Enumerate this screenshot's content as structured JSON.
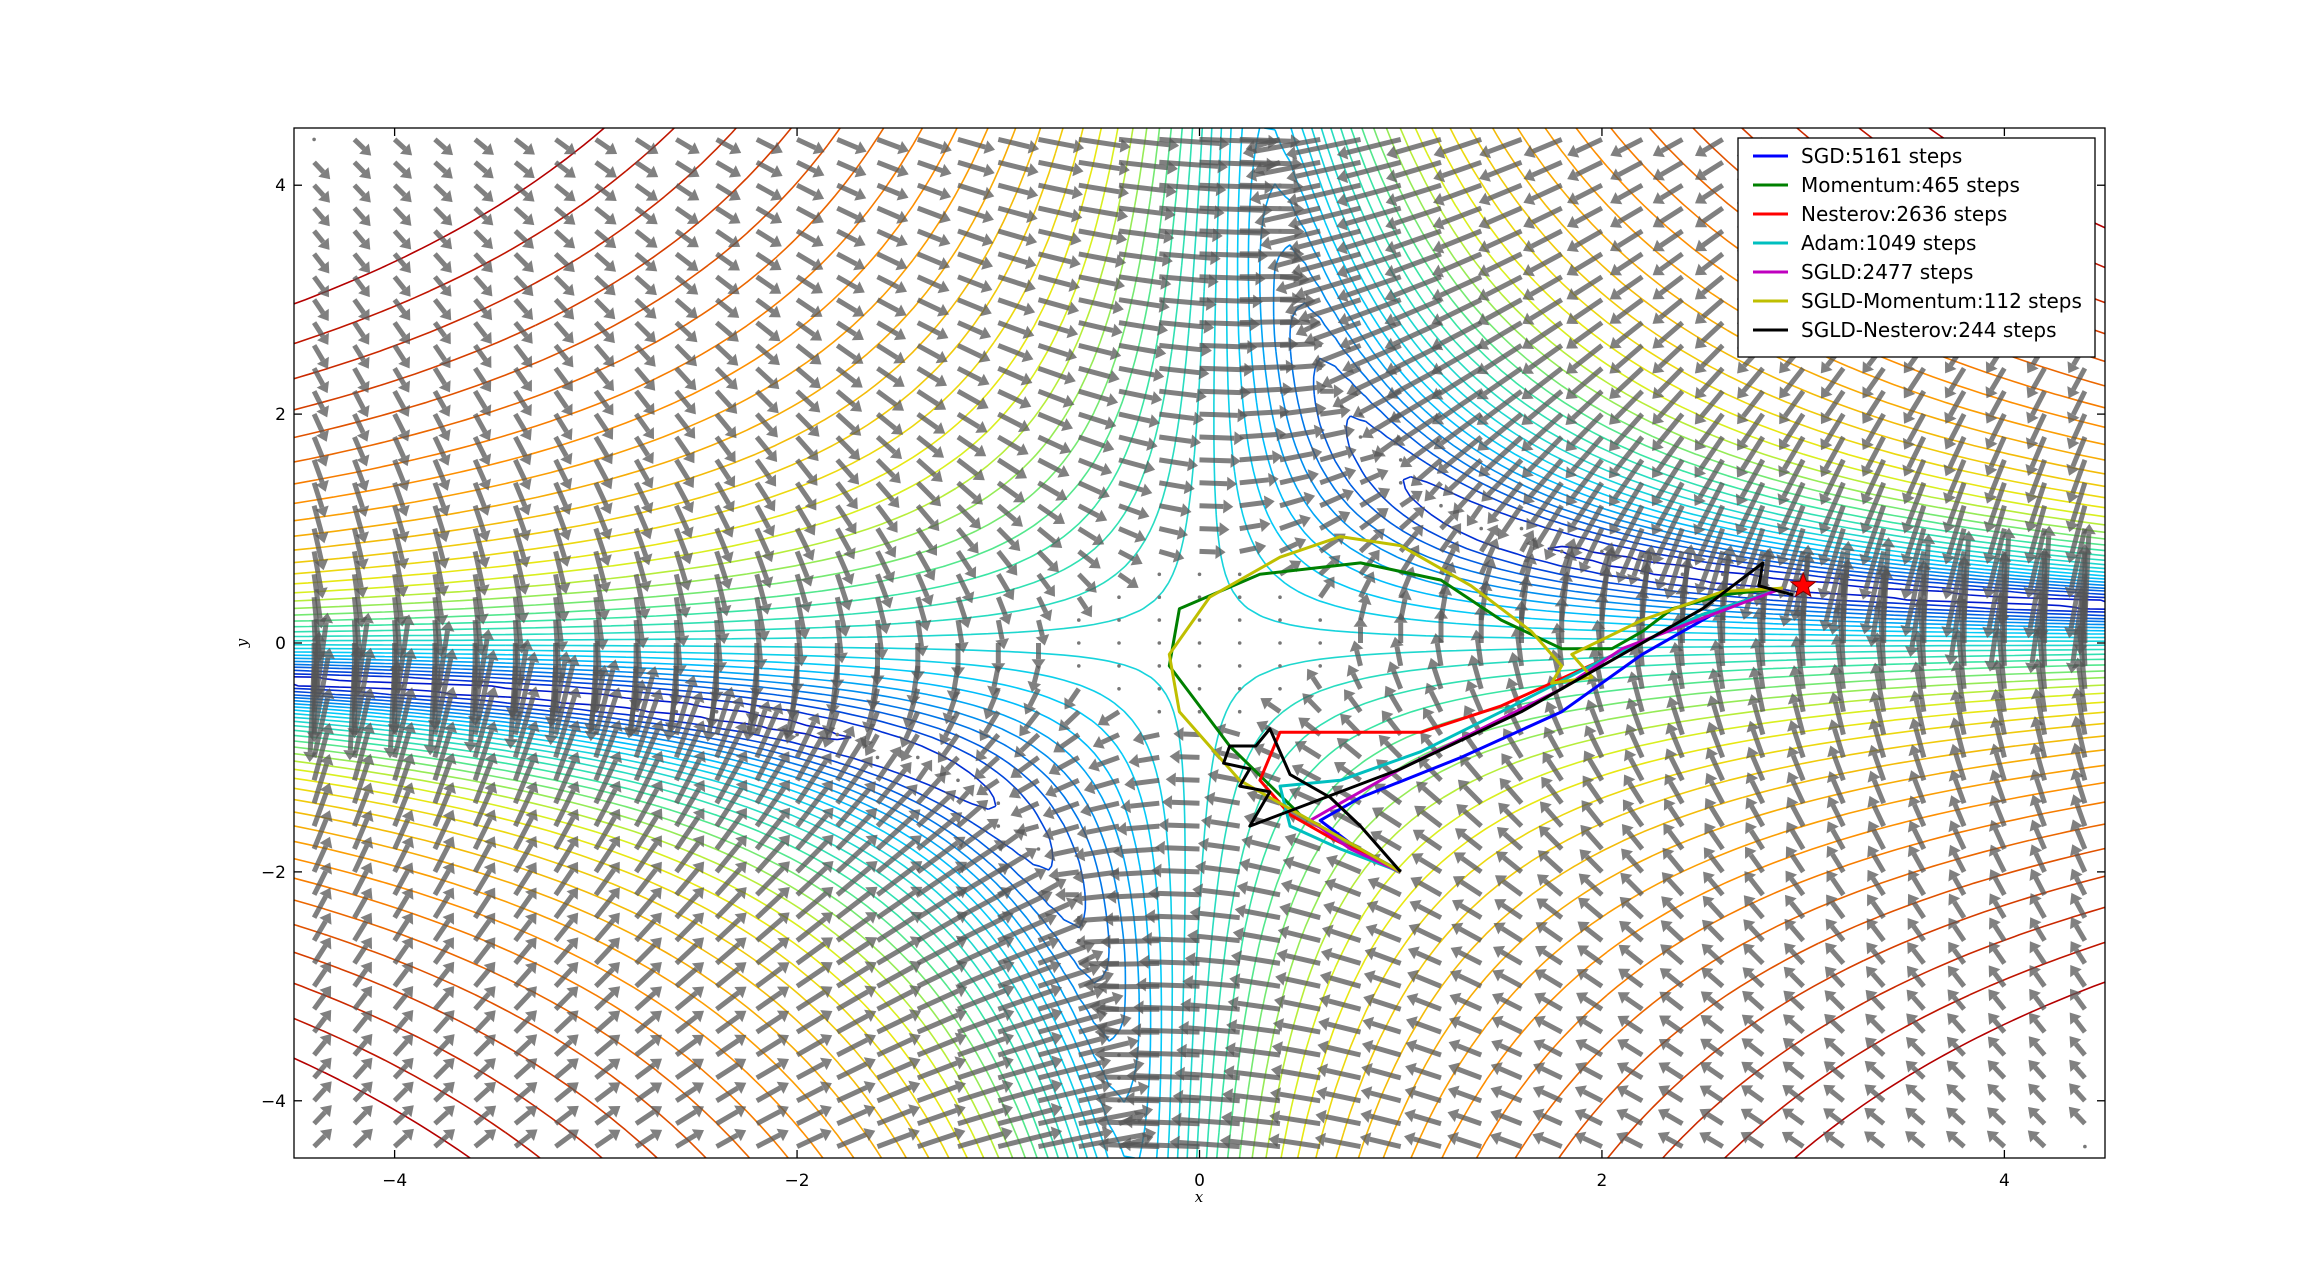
{
  "chart_data": {
    "type": "line",
    "title": "",
    "xlabel": "x",
    "ylabel": "y",
    "xlim": [
      -4.5,
      4.5
    ],
    "ylim": [
      -4.5,
      4.5
    ],
    "x_ticks": [
      -4,
      -2,
      0,
      2,
      4
    ],
    "y_ticks": [
      -4,
      -2,
      0,
      2,
      4
    ],
    "x_tick_labels": [
      "−4",
      "−2",
      "0",
      "2",
      "4"
    ],
    "y_tick_labels": [
      "−4",
      "−2",
      "0",
      "2",
      "4"
    ],
    "grid": false,
    "legend_position": "top-right",
    "background": "contour lines of a loss surface with gradient field arrows",
    "start_point": [
      1.0,
      -2.0
    ],
    "target": {
      "x": 3.0,
      "y": 0.5,
      "marker": "star",
      "color": "#ff0000"
    },
    "series": [
      {
        "name": "SGD:5161 steps",
        "color": "#0000ff",
        "points": [
          [
            1.0,
            -2.0
          ],
          [
            0.75,
            -1.75
          ],
          [
            0.6,
            -1.55
          ],
          [
            0.8,
            -1.35
          ],
          [
            1.3,
            -1.0
          ],
          [
            1.8,
            -0.6
          ],
          [
            2.2,
            -0.1
          ],
          [
            2.6,
            0.3
          ],
          [
            2.9,
            0.48
          ]
        ]
      },
      {
        "name": "Momentum:465 steps",
        "color": "#008000",
        "points": [
          [
            1.0,
            -2.0
          ],
          [
            0.5,
            -1.5
          ],
          [
            0.15,
            -0.9
          ],
          [
            -0.15,
            -0.2
          ],
          [
            -0.1,
            0.3
          ],
          [
            0.3,
            0.6
          ],
          [
            0.8,
            0.7
          ],
          [
            1.2,
            0.55
          ],
          [
            1.5,
            0.2
          ],
          [
            1.8,
            -0.05
          ],
          [
            2.05,
            -0.05
          ],
          [
            2.2,
            0.1
          ],
          [
            2.35,
            0.3
          ],
          [
            2.6,
            0.42
          ],
          [
            2.9,
            0.48
          ]
        ]
      },
      {
        "name": "Nesterov:2636 steps",
        "color": "#ff0000",
        "points": [
          [
            1.0,
            -2.0
          ],
          [
            0.65,
            -1.7
          ],
          [
            0.45,
            -1.5
          ],
          [
            0.3,
            -1.2
          ],
          [
            0.4,
            -0.78
          ],
          [
            1.1,
            -0.78
          ],
          [
            1.5,
            -0.55
          ],
          [
            2.0,
            -0.15
          ],
          [
            2.5,
            0.25
          ],
          [
            2.9,
            0.48
          ]
        ]
      },
      {
        "name": "Adam:1049 steps",
        "color": "#00bfbf",
        "points": [
          [
            1.0,
            -2.0
          ],
          [
            0.7,
            -1.8
          ],
          [
            0.45,
            -1.6
          ],
          [
            0.4,
            -1.25
          ],
          [
            0.7,
            -1.2
          ],
          [
            1.1,
            -0.95
          ],
          [
            1.5,
            -0.6
          ],
          [
            2.0,
            -0.15
          ],
          [
            2.5,
            0.25
          ],
          [
            2.9,
            0.48
          ]
        ]
      },
      {
        "name": "SGLD:2477 steps",
        "color": "#bf00bf",
        "points": [
          [
            1.0,
            -2.0
          ],
          [
            0.75,
            -1.8
          ],
          [
            0.55,
            -1.55
          ],
          [
            0.7,
            -1.4
          ],
          [
            1.0,
            -1.1
          ],
          [
            1.4,
            -0.75
          ],
          [
            1.8,
            -0.4
          ],
          [
            2.1,
            -0.05
          ],
          [
            2.4,
            0.15
          ],
          [
            2.7,
            0.35
          ],
          [
            2.9,
            0.48
          ]
        ]
      },
      {
        "name": "SGLD-Momentum:112 steps",
        "color": "#bfbf00",
        "points": [
          [
            1.0,
            -2.0
          ],
          [
            0.6,
            -1.6
          ],
          [
            0.2,
            -1.2
          ],
          [
            -0.1,
            -0.6
          ],
          [
            -0.15,
            -0.1
          ],
          [
            0.05,
            0.4
          ],
          [
            0.4,
            0.75
          ],
          [
            0.7,
            0.93
          ],
          [
            1.0,
            0.85
          ],
          [
            1.35,
            0.5
          ],
          [
            1.65,
            0.1
          ],
          [
            1.8,
            -0.2
          ],
          [
            1.75,
            -0.35
          ],
          [
            1.95,
            -0.3
          ],
          [
            1.85,
            -0.1
          ],
          [
            2.2,
            0.2
          ],
          [
            2.6,
            0.45
          ],
          [
            2.9,
            0.48
          ]
        ]
      },
      {
        "name": "SGLD-Nesterov:244 steps",
        "color": "#000000",
        "points": [
          [
            1.0,
            -2.0
          ],
          [
            0.8,
            -1.6
          ],
          [
            0.65,
            -1.35
          ],
          [
            0.45,
            -1.15
          ],
          [
            0.35,
            -0.75
          ],
          [
            0.28,
            -0.9
          ],
          [
            0.15,
            -0.9
          ],
          [
            0.12,
            -1.05
          ],
          [
            0.25,
            -1.1
          ],
          [
            0.2,
            -1.25
          ],
          [
            0.35,
            -1.3
          ],
          [
            0.25,
            -1.6
          ],
          [
            1.0,
            -1.1
          ],
          [
            1.6,
            -0.6
          ],
          [
            2.1,
            -0.1
          ],
          [
            2.5,
            0.3
          ],
          [
            2.8,
            0.7
          ],
          [
            2.78,
            0.5
          ],
          [
            2.95,
            0.42
          ]
        ]
      }
    ]
  }
}
